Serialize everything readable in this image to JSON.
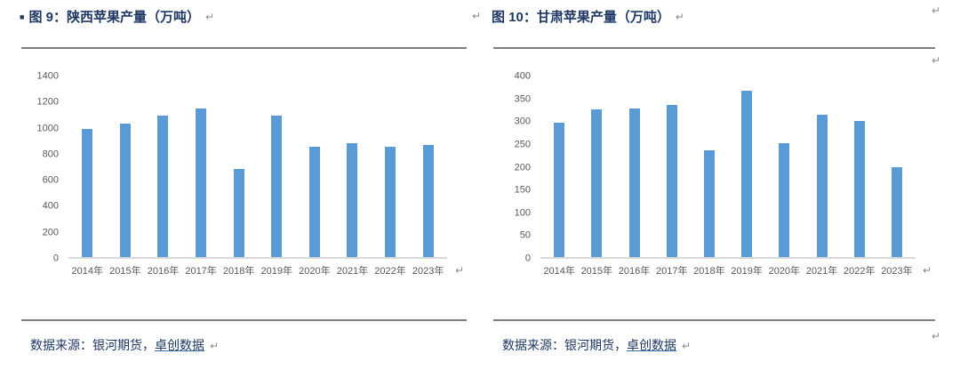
{
  "figures": [
    {
      "bullet": "■",
      "title": "图 9：陕西苹果产量（万吨）",
      "source_prefix": "数据来源：银河期货，",
      "source_link": "卓创数据"
    },
    {
      "title": "图 10：甘肃苹果产量（万吨）",
      "source_prefix": "数据来源：银河期货，",
      "source_link": "卓创数据"
    }
  ],
  "marks": {
    "return_symbol": "↵"
  },
  "colors": {
    "bar": "#5B9BD5",
    "title_text": "#1F3864",
    "tick_text": "#595959",
    "axis_line": "#D9D9D9",
    "rule": "#7F7F7F",
    "format_mark": "#8C8C8C"
  },
  "chart_data": [
    {
      "type": "bar",
      "title": "图 9：陕西苹果产量（万吨）",
      "categories": [
        "2014年",
        "2015年",
        "2016年",
        "2017年",
        "2018年",
        "2019年",
        "2020年",
        "2021年",
        "2022年",
        "2023年"
      ],
      "values": [
        990,
        1035,
        1100,
        1150,
        685,
        1100,
        855,
        885,
        855,
        870
      ],
      "xlabel": "",
      "ylabel": "",
      "ylim": [
        0,
        1400
      ],
      "ytick_step": 200,
      "grid": false,
      "legend": "none",
      "bar_color": "#5B9BD5"
    },
    {
      "type": "bar",
      "title": "图 10：甘肃苹果产量（万吨）",
      "categories": [
        "2014年",
        "2015年",
        "2016年",
        "2017年",
        "2018年",
        "2019年",
        "2020年",
        "2021年",
        "2022年",
        "2023年"
      ],
      "values": [
        298,
        328,
        330,
        336,
        237,
        368,
        253,
        316,
        302,
        200
      ],
      "xlabel": "",
      "ylabel": "",
      "ylim": [
        0,
        400
      ],
      "ytick_step": 50,
      "grid": false,
      "legend": "none",
      "bar_color": "#5B9BD5"
    }
  ]
}
